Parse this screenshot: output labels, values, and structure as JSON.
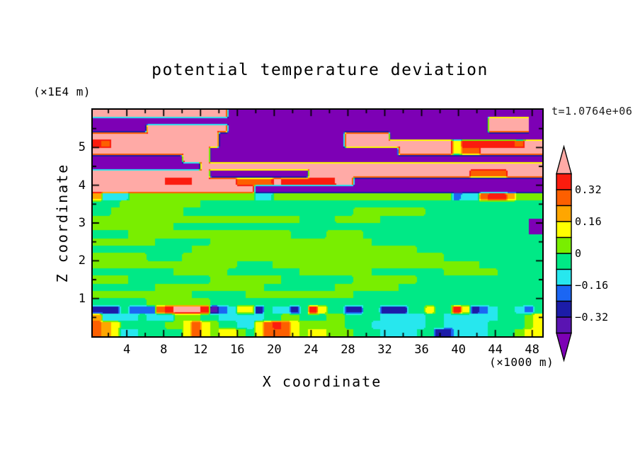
{
  "title": "potential temperature deviation",
  "time_label": "t=1.0764e+06",
  "axes": {
    "x": {
      "label": "X coordinate",
      "unit": "(×1000 m)",
      "range": [
        0.3,
        49.1
      ],
      "major_ticks": [
        4,
        8,
        12,
        16,
        20,
        24,
        28,
        32,
        36,
        40,
        44,
        48
      ],
      "minor_ticks": [
        2,
        6,
        10,
        14,
        18,
        22,
        26,
        30,
        34,
        38,
        42,
        46
      ]
    },
    "z": {
      "label": "Z coordinate",
      "unit": "(×1E4 m)",
      "range": [
        0,
        6
      ],
      "major_ticks": [
        1,
        2,
        3,
        4,
        5
      ],
      "minor_ticks": [
        0.5,
        1.5,
        2.5,
        3.5,
        4.5,
        5.5
      ]
    }
  },
  "colorbar": {
    "palette": [
      "#ffaaa6",
      "#fb1c0e",
      "#fd5f00",
      "#ffa600",
      "#ffff00",
      "#79ee00",
      "#00e986",
      "#27e7ee",
      "#1b66f3",
      "#1c1ca8",
      "#5a14b2",
      "#7d00b5"
    ],
    "labels": [
      {
        "text": "0.32",
        "boundary": 1
      },
      {
        "text": "0.16",
        "boundary": 3
      },
      {
        "text": "0",
        "boundary": 5
      },
      {
        "text": "−0.16",
        "boundary": 7
      },
      {
        "text": "−0.32",
        "boundary": 9
      }
    ],
    "levels": [
      0.4,
      0.32,
      0.24,
      0.16,
      0.08,
      0.0,
      -0.08,
      -0.16,
      -0.24,
      -0.32,
      -0.4
    ]
  },
  "chart_data": {
    "type": "heatmap",
    "subtype": "filled-contour",
    "title": "potential temperature deviation",
    "xlabel": "X coordinate (×1000 m)",
    "ylabel": "Z coordinate (×1E4 m)",
    "time_annotation": "t=1.0764e+06",
    "contour_levels": [
      0.4,
      0.32,
      0.24,
      0.16,
      0.08,
      0.0,
      -0.08,
      -0.16,
      -0.24,
      -0.32,
      -0.4
    ],
    "labeled_levels": [
      0.32,
      0.16,
      0,
      -0.16,
      -0.32
    ],
    "xlim": [
      0.3,
      49.1
    ],
    "zlim": [
      0,
      6
    ],
    "field": {
      "description": "Coarse 50x30 grid of potential-temperature-deviation band values; row 0 = z 5.9, row 29 = z 0.1; col 0 = x 0.5, col 49 = x 49.5",
      "value_map": {
        "P": 0.44,
        "R": 0.36,
        "O": 0.28,
        "o": 0.2,
        "Y": 0.12,
        "g": 0.04,
        "G": -0.04,
        "C": -0.12,
        "B": -0.2,
        "N": -0.28,
        "I": -0.36,
        "V": -0.44
      },
      "grid": [
        "PPPPPPPPPPPPPPPVVVVVVVVVVVVVVVVVVVVVVVVVVVVVVVVVVV",
        "VVVVVVVVVVVVVVVVVVVVVVVVVVVVVVVVVVVVVVVVVVVVPPPPP",
        "VVVVVVPPPPPPPPPVVVVVVVVVVVVVVVVVVVVVVVVVVVVVPPPPP",
        "PPPPPPPPPPPPPPVVVVVVVVVVVVVVPPPPPVVVVVVVVVVVVVVVVV",
        "ROPPPPPPPPPPPPVVVVVVVVVVVVVVPPPPPPPPPPPPYRRRRRROPP",
        "PPPPPPPPPPPPPVVVVVVVVVVVVVVVVVVVVVPPPPPPYOOPPPPPPP",
        "VVVVVVVVVVPPPVVVVVVVVVVVVVVVVVVVVVVVVVVVVVVVVVVVVV",
        "VVVVVVVVVVVVPPPPPPPPPPPPPPPPPPPPPPPPPPPPPPPPPPPPPP",
        "PPPPPPPPPPPPPVVVVVVVVVVVPPPPPPPPPPPPPPPPPPOOOOPPPP",
        "PPPPPPPPRRRPPPPPOOOOPRRRRRRPPVVVVVVVVVVVVVVVVVVVVV",
        "PPPPPPPPPPPPPPPPPPVVVVVVVVVVVVVVVVVVVVVVVVVVVVVVVV",
        "oCCCggggggggggggggCCggggggggggggggggggggBCCORRoggg",
        "GGGgggggggggGGGGGGGGGGGGGGGGGGGGGGGGGGGGGGGGGGGGGG",
        "GGggggggggGGGGGGGGGGGGGGGGGGGggggggggGGGGGGGGGGGGG",
        "gggggggggggggggggggggggGGGGgggggGGGGGGGGGGGGGGGGGG",
        "gggggggggGGGGGGGGGGGGGGGGGGGGGGGGGGGGGGGGGGGGGGGG",
        "GGGGggggggggggggggggggGGGGggggGGGGGGGGGGGGGGGGGGGG",
        "gggggggGGGGGGggggggggggggggggggGGGGGGGGGGGGGGGGGGG",
        "GGGGGGGGGGGgggggggggggggggggggggggggGGGGGGGGGGGGGG",
        "ggggggGGGGgggggggggggggggggggggggggggggGGGGGGGGGGG",
        "ggggggggggggggggGGGGgggggggggggggggggggggggGGGGGGG",
        "GGGGGGGGGggggggGGGGGGGGggggggggGGGGGGGGggggggGGGGG",
        "ggggGGGGGGGGGggggggggGGGGGGGGgggggggGGGGGGGGGGGGGG",
        "GGGGGGGggggggggggggGGGGGGGGgggggggGGGGGGGGGGGGGGGG",
        "gggggggggggGGGGGGggggggggggggGGGGGGGGGGGGGGGGGGGGG",
        "GGGGGGgggggggGGGGGGGGGGGGGGGGGGGGGGGGGGGGGGGGGGGGG",
        "NNNGBBBORPPPRIBCYYNGCCNGRYGGNNGGNNNGGYGGRYNBCGGCBG",
        "oCCCCGCCCgggGGCCCCCGGggGGGggGGGGCCCCCGGCCCCCCGGGgY",
        "OoYGGGGGggYOYgGGCCYOROYgggggGGGCCCCCCGGCCCCCGGGGgY",
        "OoYCCGGGGGYOYgYYgGYOOOYgYYgggGGGCCCCGGNNCCCCGGGgYY"
      ]
    },
    "legend_position": "right-colorbar",
    "grid_lines": false
  }
}
